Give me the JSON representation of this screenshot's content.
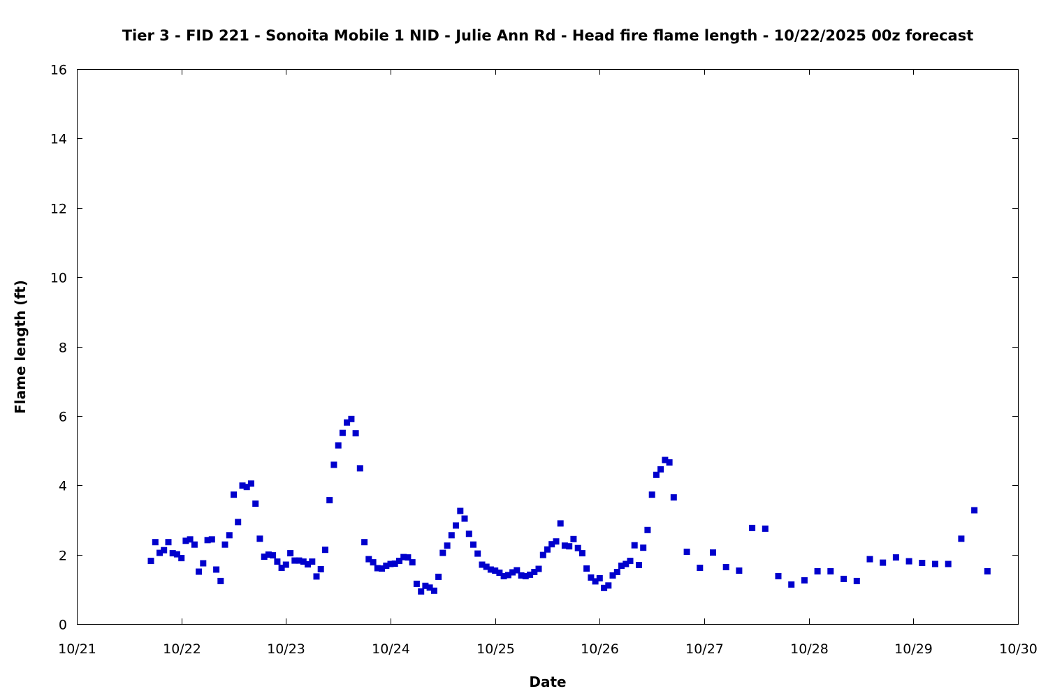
{
  "chart_data": {
    "type": "scatter",
    "title": "Tier 3 - FID 221 - Sonoita Mobile 1 NID - Julie Ann Rd - Head fire flame length - 10/22/2025 00z forecast",
    "xlabel": "Date",
    "ylabel": "Flame length (ft)",
    "xlim": [
      "10/21",
      "10/30"
    ],
    "ylim": [
      0,
      16
    ],
    "x_ticks": [
      "10/21",
      "10/22",
      "10/23",
      "10/24",
      "10/25",
      "10/26",
      "10/27",
      "10/28",
      "10/29",
      "10/30"
    ],
    "y_ticks": [
      0,
      2,
      4,
      6,
      8,
      10,
      12,
      14,
      16
    ],
    "grid": false,
    "marker_color": "#0000cc",
    "series": [
      {
        "x": [
          "10/21 17:00",
          "10/21 18:00",
          "10/21 19:00",
          "10/21 20:00",
          "10/21 21:00",
          "10/21 22:00",
          "10/21 23:00",
          "10/22 00:00",
          "10/22 01:00",
          "10/22 02:00",
          "10/22 03:00",
          "10/22 04:00",
          "10/22 05:00",
          "10/22 06:00",
          "10/22 07:00",
          "10/22 08:00",
          "10/22 09:00",
          "10/22 10:00",
          "10/22 11:00",
          "10/22 12:00",
          "10/22 13:00",
          "10/22 14:00",
          "10/22 15:00",
          "10/22 16:00",
          "10/22 17:00",
          "10/22 18:00",
          "10/22 19:00",
          "10/22 20:00",
          "10/22 21:00",
          "10/22 22:00",
          "10/22 23:00",
          "10/23 00:00",
          "10/23 01:00",
          "10/23 02:00",
          "10/23 03:00",
          "10/23 04:00",
          "10/23 05:00",
          "10/23 06:00",
          "10/23 07:00",
          "10/23 08:00",
          "10/23 09:00",
          "10/23 10:00",
          "10/23 11:00",
          "10/23 12:00",
          "10/23 13:00",
          "10/23 14:00",
          "10/23 15:00",
          "10/23 16:00",
          "10/23 17:00",
          "10/23 18:00",
          "10/23 19:00",
          "10/23 20:00",
          "10/23 21:00",
          "10/23 22:00",
          "10/23 23:00",
          "10/24 00:00",
          "10/24 01:00",
          "10/24 02:00",
          "10/24 03:00",
          "10/24 04:00",
          "10/24 05:00",
          "10/24 06:00",
          "10/24 07:00",
          "10/24 08:00",
          "10/24 09:00",
          "10/24 10:00",
          "10/24 11:00",
          "10/24 12:00",
          "10/24 13:00",
          "10/24 14:00",
          "10/24 15:00",
          "10/24 16:00",
          "10/24 17:00",
          "10/24 18:00",
          "10/24 19:00",
          "10/24 20:00",
          "10/24 21:00",
          "10/24 22:00",
          "10/24 23:00",
          "10/25 00:00",
          "10/25 01:00",
          "10/25 02:00",
          "10/25 03:00",
          "10/25 04:00",
          "10/25 05:00",
          "10/25 06:00",
          "10/25 07:00",
          "10/25 08:00",
          "10/25 09:00",
          "10/25 10:00",
          "10/25 11:00",
          "10/25 12:00",
          "10/25 13:00",
          "10/25 14:00",
          "10/25 15:00",
          "10/25 16:00",
          "10/25 17:00",
          "10/25 18:00",
          "10/25 19:00",
          "10/25 20:00",
          "10/25 21:00",
          "10/25 22:00",
          "10/25 23:00",
          "10/26 00:00",
          "10/26 01:00",
          "10/26 02:00",
          "10/26 03:00",
          "10/26 04:00",
          "10/26 05:00",
          "10/26 06:00",
          "10/26 07:00",
          "10/26 08:00",
          "10/26 09:00",
          "10/26 10:00",
          "10/26 11:00",
          "10/26 12:00",
          "10/26 13:00",
          "10/26 14:00",
          "10/26 15:00",
          "10/26 16:00",
          "10/26 17:00",
          "10/26 20:00",
          "10/26 23:00",
          "10/27 02:00",
          "10/27 05:00",
          "10/27 08:00",
          "10/27 11:00",
          "10/27 14:00",
          "10/27 17:00",
          "10/27 20:00",
          "10/27 23:00",
          "10/28 02:00",
          "10/28 05:00",
          "10/28 08:00",
          "10/28 11:00",
          "10/28 14:00",
          "10/28 17:00",
          "10/28 20:00",
          "10/28 23:00",
          "10/29 02:00",
          "10/29 05:00",
          "10/29 08:00",
          "10/29 11:00",
          "10/29 14:00",
          "10/29 17:00"
        ],
        "y": [
          1.82,
          2.36,
          2.05,
          2.13,
          2.36,
          2.04,
          2.01,
          1.9,
          2.4,
          2.44,
          2.29,
          1.51,
          1.75,
          2.42,
          2.44,
          1.57,
          1.24,
          2.29,
          2.56,
          3.73,
          2.94,
          3.99,
          3.95,
          4.05,
          3.47,
          2.46,
          1.94,
          2.0,
          1.98,
          1.8,
          1.62,
          1.71,
          2.04,
          1.83,
          1.83,
          1.8,
          1.72,
          1.8,
          1.37,
          1.58,
          2.14,
          3.57,
          4.59,
          5.15,
          5.51,
          5.81,
          5.91,
          5.5,
          4.49,
          2.36,
          1.87,
          1.78,
          1.61,
          1.6,
          1.68,
          1.73,
          1.74,
          1.82,
          1.93,
          1.92,
          1.78,
          1.16,
          0.94,
          1.1,
          1.05,
          0.96,
          1.36,
          2.05,
          2.26,
          2.56,
          2.84,
          3.26,
          3.04,
          2.6,
          2.29,
          2.03,
          1.71,
          1.65,
          1.57,
          1.54,
          1.48,
          1.38,
          1.41,
          1.49,
          1.55,
          1.4,
          1.38,
          1.42,
          1.5,
          1.59,
          1.99,
          2.15,
          2.3,
          2.38,
          2.9,
          2.26,
          2.24,
          2.45,
          2.19,
          2.04,
          1.6,
          1.34,
          1.23,
          1.32,
          1.04,
          1.11,
          1.4,
          1.5,
          1.68,
          1.73,
          1.82,
          2.27,
          1.7,
          2.2,
          2.71,
          3.73,
          4.3,
          4.46,
          4.73,
          4.66,
          3.65,
          2.08,
          1.62,
          2.06,
          1.64,
          1.54,
          2.77,
          2.75,
          1.38,
          1.14,
          1.26,
          1.52,
          1.52,
          1.3,
          1.24,
          1.87,
          1.77,
          1.92,
          1.81,
          1.76,
          1.73,
          1.73,
          2.46,
          3.28,
          1.52
        ]
      }
    ]
  }
}
